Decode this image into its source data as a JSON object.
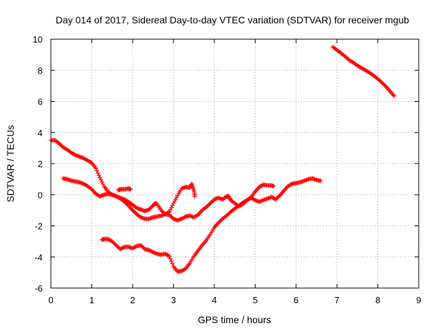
{
  "chart_data": {
    "type": "scatter",
    "title": "Day 014 of 2017, Sidereal Day-to-day VTEC variation (SDTVAR) for receiver mgub",
    "xlabel": "GPS time / hours",
    "ylabel": "SDTVAR / TECUs",
    "xlim": [
      0,
      9
    ],
    "ylim": [
      -6,
      10
    ],
    "xticks": [
      0,
      1,
      2,
      3,
      4,
      5,
      6,
      7,
      8,
      9
    ],
    "yticks": [
      -6,
      -4,
      -2,
      0,
      2,
      4,
      6,
      8,
      10
    ],
    "grid": true,
    "marker": "+",
    "color": "#ff0000",
    "series": [
      {
        "points": [
          [
            0.0,
            3.5
          ],
          [
            0.1,
            3.5
          ],
          [
            0.2,
            3.3
          ],
          [
            0.3,
            3.05
          ],
          [
            0.4,
            2.9
          ],
          [
            0.5,
            2.7
          ],
          [
            0.6,
            2.55
          ],
          [
            0.7,
            2.45
          ],
          [
            0.8,
            2.35
          ],
          [
            0.9,
            2.2
          ],
          [
            1.0,
            2.05
          ],
          [
            1.1,
            1.7
          ],
          [
            1.2,
            1.1
          ],
          [
            1.3,
            0.55
          ],
          [
            1.4,
            0.2
          ],
          [
            1.5,
            0.0
          ],
          [
            1.6,
            -0.1
          ],
          [
            1.7,
            -0.2
          ],
          [
            1.8,
            -0.3
          ],
          [
            1.9,
            -0.45
          ],
          [
            2.0,
            -0.65
          ],
          [
            2.1,
            -0.85
          ],
          [
            2.2,
            -0.95
          ],
          [
            2.3,
            -1.05
          ],
          [
            2.4,
            -0.95
          ],
          [
            2.5,
            -0.7
          ],
          [
            2.55,
            -0.55
          ],
          [
            2.6,
            -0.6
          ],
          [
            2.7,
            -1.0
          ],
          [
            2.8,
            -1.25
          ],
          [
            2.9,
            -1.1
          ],
          [
            3.0,
            -0.55
          ],
          [
            3.1,
            -0.05
          ],
          [
            3.2,
            0.4
          ],
          [
            3.3,
            0.5
          ],
          [
            3.4,
            0.45
          ],
          [
            3.45,
            0.7
          ],
          [
            3.5,
            0.3
          ],
          [
            3.52,
            -0.1
          ]
        ]
      },
      {
        "points": [
          [
            0.3,
            1.05
          ],
          [
            0.4,
            1.0
          ],
          [
            0.5,
            0.9
          ],
          [
            0.6,
            0.85
          ],
          [
            0.7,
            0.8
          ],
          [
            0.8,
            0.7
          ],
          [
            0.9,
            0.55
          ],
          [
            1.0,
            0.35
          ],
          [
            1.1,
            0.05
          ],
          [
            1.2,
            -0.1
          ],
          [
            1.3,
            0.0
          ],
          [
            1.4,
            0.05
          ],
          [
            1.5,
            0.0
          ],
          [
            1.6,
            -0.1
          ],
          [
            1.7,
            -0.25
          ],
          [
            1.8,
            -0.45
          ],
          [
            1.9,
            -0.7
          ],
          [
            2.0,
            -1.0
          ],
          [
            2.1,
            -1.25
          ],
          [
            2.2,
            -1.45
          ],
          [
            2.3,
            -1.55
          ],
          [
            2.4,
            -1.55
          ],
          [
            2.5,
            -1.45
          ],
          [
            2.6,
            -1.4
          ],
          [
            2.7,
            -1.35
          ],
          [
            2.8,
            -1.25
          ],
          [
            2.9,
            -1.3
          ],
          [
            3.0,
            -1.55
          ],
          [
            3.1,
            -1.65
          ],
          [
            3.2,
            -1.55
          ],
          [
            3.3,
            -1.4
          ],
          [
            3.4,
            -1.35
          ],
          [
            3.5,
            -1.45
          ],
          [
            3.6,
            -1.3
          ],
          [
            3.7,
            -1.0
          ],
          [
            3.8,
            -0.8
          ],
          [
            3.9,
            -0.55
          ],
          [
            4.0,
            -0.3
          ],
          [
            4.1,
            -0.2
          ],
          [
            4.2,
            -0.3
          ],
          [
            4.3,
            -0.1
          ],
          [
            4.35,
            -0.1
          ],
          [
            4.4,
            -0.35
          ],
          [
            4.5,
            -0.55
          ],
          [
            4.6,
            -0.75
          ],
          [
            4.7,
            -0.6
          ],
          [
            4.8,
            -0.35
          ],
          [
            4.9,
            -0.2
          ],
          [
            5.0,
            -0.35
          ],
          [
            5.1,
            -0.45
          ],
          [
            5.2,
            -0.35
          ],
          [
            5.3,
            -0.25
          ],
          [
            5.4,
            -0.15
          ],
          [
            5.5,
            -0.3
          ],
          [
            5.6,
            -0.05
          ],
          [
            5.7,
            0.25
          ],
          [
            5.8,
            0.55
          ],
          [
            5.9,
            0.7
          ],
          [
            6.0,
            0.75
          ],
          [
            6.1,
            0.8
          ],
          [
            6.2,
            0.9
          ],
          [
            6.3,
            1.0
          ],
          [
            6.4,
            1.05
          ],
          [
            6.5,
            0.95
          ],
          [
            6.6,
            0.9
          ]
        ]
      },
      {
        "points": [
          [
            1.65,
            0.3
          ],
          [
            1.7,
            0.35
          ],
          [
            1.8,
            0.35
          ],
          [
            1.9,
            0.4
          ],
          [
            1.95,
            0.35
          ]
        ]
      },
      {
        "points": [
          [
            1.25,
            -2.9
          ],
          [
            1.3,
            -2.85
          ],
          [
            1.4,
            -2.85
          ],
          [
            1.5,
            -3.0
          ],
          [
            1.6,
            -3.25
          ],
          [
            1.7,
            -3.5
          ],
          [
            1.8,
            -3.35
          ],
          [
            1.9,
            -3.35
          ],
          [
            2.0,
            -3.45
          ],
          [
            2.1,
            -3.3
          ],
          [
            2.2,
            -3.25
          ],
          [
            2.3,
            -3.5
          ],
          [
            2.4,
            -3.55
          ],
          [
            2.5,
            -3.7
          ],
          [
            2.6,
            -3.8
          ],
          [
            2.7,
            -3.85
          ],
          [
            2.8,
            -3.8
          ],
          [
            2.9,
            -3.95
          ],
          [
            3.0,
            -4.6
          ],
          [
            3.1,
            -4.95
          ],
          [
            3.2,
            -4.9
          ],
          [
            3.3,
            -4.75
          ],
          [
            3.4,
            -4.4
          ],
          [
            3.5,
            -3.95
          ],
          [
            3.6,
            -3.6
          ],
          [
            3.7,
            -3.25
          ],
          [
            3.8,
            -2.95
          ],
          [
            3.9,
            -2.55
          ],
          [
            4.0,
            -2.1
          ],
          [
            4.1,
            -1.8
          ],
          [
            4.2,
            -1.55
          ],
          [
            4.3,
            -1.35
          ],
          [
            4.4,
            -1.1
          ],
          [
            4.5,
            -0.9
          ],
          [
            4.6,
            -0.7
          ],
          [
            4.7,
            -0.5
          ],
          [
            4.8,
            -0.35
          ],
          [
            4.9,
            -0.15
          ],
          [
            5.0,
            0.2
          ],
          [
            5.1,
            0.5
          ],
          [
            5.2,
            0.65
          ],
          [
            5.3,
            0.6
          ],
          [
            5.4,
            0.6
          ],
          [
            5.45,
            0.55
          ]
        ]
      },
      {
        "points": [
          [
            6.9,
            9.5
          ],
          [
            7.0,
            9.3
          ],
          [
            7.1,
            9.1
          ],
          [
            7.2,
            8.9
          ],
          [
            7.3,
            8.65
          ],
          [
            7.4,
            8.5
          ],
          [
            7.5,
            8.3
          ],
          [
            7.6,
            8.15
          ],
          [
            7.7,
            8.0
          ],
          [
            7.8,
            7.85
          ],
          [
            7.9,
            7.65
          ],
          [
            8.0,
            7.45
          ],
          [
            8.1,
            7.2
          ],
          [
            8.2,
            6.95
          ],
          [
            8.3,
            6.65
          ],
          [
            8.4,
            6.35
          ]
        ]
      }
    ]
  }
}
